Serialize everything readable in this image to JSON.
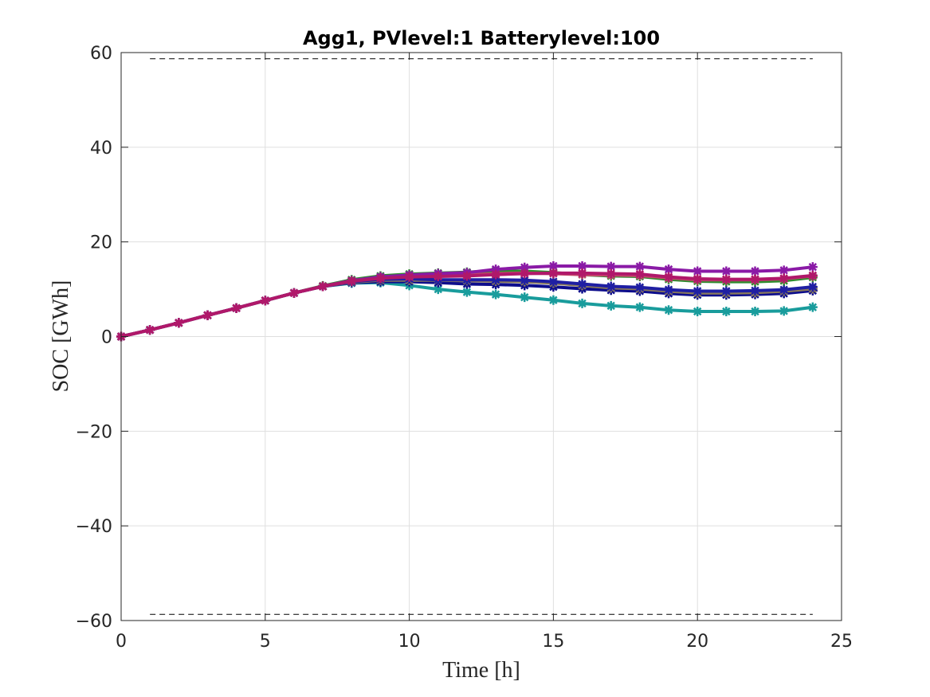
{
  "chart_data": {
    "type": "line",
    "title": "Agg1, PVlevel:1 Batterylevel:100",
    "xlabel": "Time [h]",
    "ylabel": "SOC [GWh]",
    "xlim": [
      0,
      25
    ],
    "ylim": [
      -60,
      60
    ],
    "xticks": [
      "0",
      "5",
      "10",
      "15",
      "20",
      "25"
    ],
    "yticks": [
      "-60",
      "-40",
      "-20",
      "0",
      "20",
      "40",
      "60"
    ],
    "grid": true,
    "marker": "asterisk",
    "x": [
      0,
      1,
      2,
      3,
      4,
      5,
      6,
      7,
      8,
      9,
      10,
      11,
      12,
      13,
      14,
      15,
      16,
      17,
      18,
      19,
      20,
      21,
      22,
      23,
      24
    ],
    "limits": {
      "upper": 58.7,
      "lower": -58.7,
      "x_range": [
        1,
        24
      ],
      "style": "dashed",
      "color": "#000000"
    },
    "series": [
      {
        "color": "#199c9c",
        "values": [
          0,
          1.4,
          2.9,
          4.5,
          6.0,
          7.6,
          9.2,
          10.6,
          11.3,
          11.4,
          10.8,
          10.0,
          9.4,
          8.9,
          8.3,
          7.7,
          7.0,
          6.5,
          6.2,
          5.6,
          5.3,
          5.3,
          5.3,
          5.4,
          6.2
        ]
      },
      {
        "color": "#0d0d8c",
        "values": [
          0,
          1.4,
          2.9,
          4.5,
          6.0,
          7.6,
          9.2,
          10.6,
          11.4,
          11.6,
          11.6,
          11.4,
          11.1,
          11.0,
          10.8,
          10.5,
          10.1,
          9.8,
          9.6,
          9.1,
          8.8,
          8.8,
          8.9,
          9.1,
          9.7
        ]
      },
      {
        "color": "#8a7a5a",
        "values": [
          0,
          1.4,
          2.9,
          4.5,
          6.0,
          7.6,
          9.2,
          10.6,
          11.5,
          11.9,
          11.9,
          11.9,
          11.8,
          11.7,
          11.6,
          11.3,
          10.8,
          10.3,
          10.1,
          9.6,
          9.2,
          9.2,
          9.3,
          9.6,
          10.1
        ]
      },
      {
        "color": "#1f1fa3",
        "values": [
          0,
          1.4,
          2.9,
          4.5,
          6.0,
          7.6,
          9.2,
          10.6,
          11.6,
          12.1,
          12.2,
          12.0,
          12.0,
          12.0,
          11.9,
          11.6,
          11.1,
          10.6,
          10.4,
          9.9,
          9.6,
          9.6,
          9.7,
          9.9,
          10.5
        ]
      },
      {
        "color": "#2e8b2e",
        "values": [
          0,
          1.4,
          2.9,
          4.5,
          6.0,
          7.6,
          9.2,
          10.7,
          12.0,
          12.8,
          13.2,
          13.4,
          13.6,
          13.9,
          13.8,
          13.5,
          13.1,
          12.8,
          12.7,
          12.1,
          11.7,
          11.6,
          11.6,
          11.8,
          12.5
        ]
      },
      {
        "color": "#c44a6a",
        "values": [
          0,
          1.4,
          2.9,
          4.5,
          6.0,
          7.6,
          9.2,
          10.6,
          11.8,
          12.5,
          12.8,
          12.9,
          13.0,
          13.3,
          13.4,
          13.3,
          13.1,
          13.0,
          12.9,
          12.4,
          12.0,
          12.0,
          12.0,
          12.2,
          12.8
        ]
      },
      {
        "color": "#8a1aa6",
        "values": [
          0,
          1.4,
          2.9,
          4.5,
          6.0,
          7.6,
          9.2,
          10.6,
          11.8,
          12.6,
          13.0,
          13.3,
          13.5,
          14.2,
          14.6,
          14.9,
          14.9,
          14.8,
          14.8,
          14.2,
          13.8,
          13.8,
          13.8,
          14.0,
          14.7
        ]
      },
      {
        "color": "#b0186a",
        "values": [
          0,
          1.4,
          2.9,
          4.5,
          6.0,
          7.6,
          9.2,
          10.6,
          11.7,
          12.3,
          12.6,
          12.7,
          12.8,
          13.1,
          13.3,
          13.4,
          13.4,
          13.3,
          13.2,
          12.6,
          12.2,
          12.1,
          12.1,
          12.3,
          12.9
        ]
      }
    ]
  }
}
